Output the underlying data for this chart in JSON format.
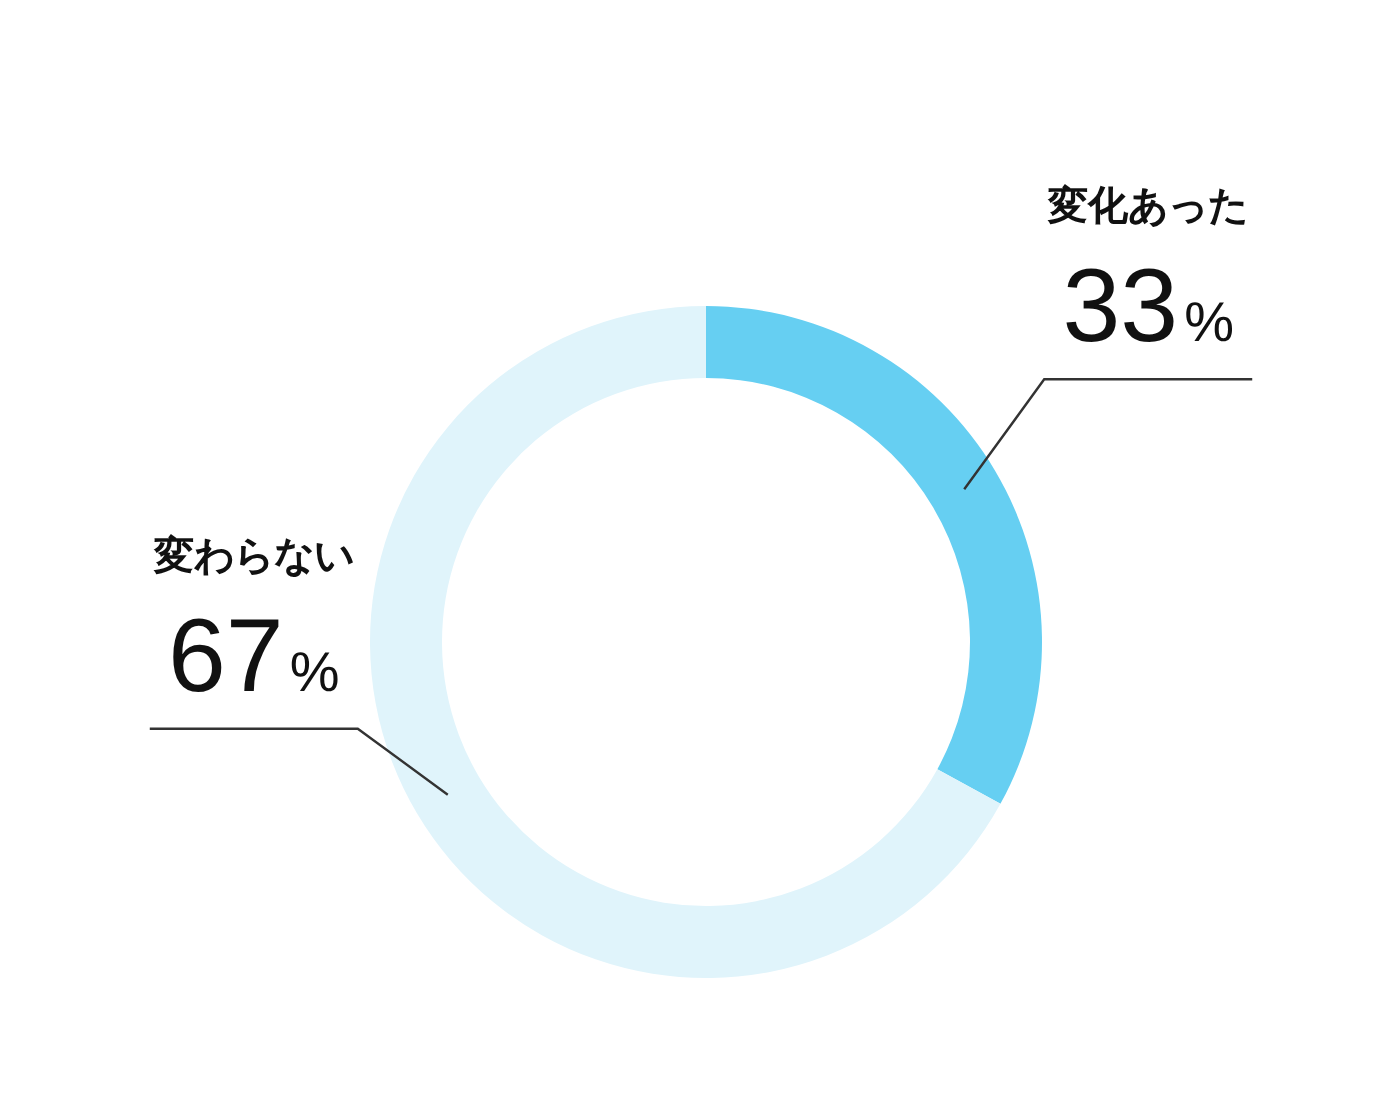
{
  "chart_data": {
    "type": "donut",
    "categories": [
      "変化あった",
      "変わらない"
    ],
    "values": [
      33,
      67
    ],
    "colors": [
      "#66cff2",
      "#e0f4fb"
    ],
    "value_labels": [
      "33%",
      "67%"
    ]
  }
}
